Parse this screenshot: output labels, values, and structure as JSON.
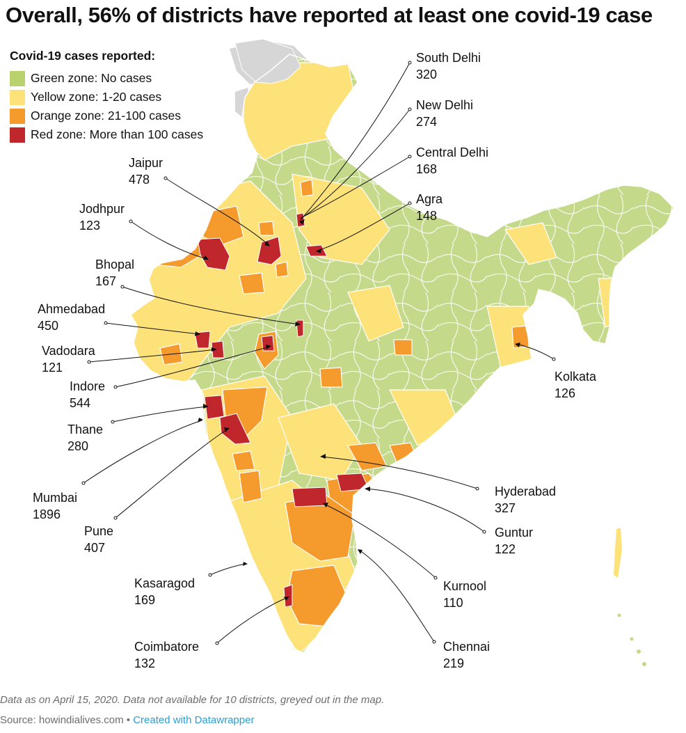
{
  "title": "Overall, 56% of districts have reported at least one covid-19 case",
  "legend": {
    "title": "Covid-19 cases reported:",
    "items": [
      {
        "label": "Green zone: No cases",
        "color": "#b9d26e"
      },
      {
        "label": "Yellow zone: 1-20 cases",
        "color": "#fde27a"
      },
      {
        "label": "Orange zone: 21-100 cases",
        "color": "#f59a2c"
      },
      {
        "label": "Red zone: More than 100 cases",
        "color": "#c0272d"
      }
    ]
  },
  "no_data_color": "#d6d6d6",
  "annotations": [
    {
      "name": "South Delhi",
      "value": "320"
    },
    {
      "name": "New Delhi",
      "value": "274"
    },
    {
      "name": "Central Delhi",
      "value": "168"
    },
    {
      "name": "Agra",
      "value": "148"
    },
    {
      "name": "Jaipur",
      "value": "478"
    },
    {
      "name": "Jodhpur",
      "value": "123"
    },
    {
      "name": "Bhopal",
      "value": "167"
    },
    {
      "name": "Ahmedabad",
      "value": "450"
    },
    {
      "name": "Vadodara",
      "value": "121"
    },
    {
      "name": "Indore",
      "value": "544"
    },
    {
      "name": "Thane",
      "value": "280"
    },
    {
      "name": "Mumbai",
      "value": "1896"
    },
    {
      "name": "Pune",
      "value": "407"
    },
    {
      "name": "Kasaragod",
      "value": "169"
    },
    {
      "name": "Coimbatore",
      "value": "132"
    },
    {
      "name": "Kolkata",
      "value": "126"
    },
    {
      "name": "Hyderabad",
      "value": "327"
    },
    {
      "name": "Guntur",
      "value": "122"
    },
    {
      "name": "Kurnool",
      "value": "110"
    },
    {
      "name": "Chennai",
      "value": "219"
    }
  ],
  "footer": {
    "note": "Data as on April 15, 2020. Data not available for 10 districts, greyed out in the map.",
    "source": "Source: howindialives.com",
    "separator": "•",
    "credit": "Created with Datawrapper"
  }
}
